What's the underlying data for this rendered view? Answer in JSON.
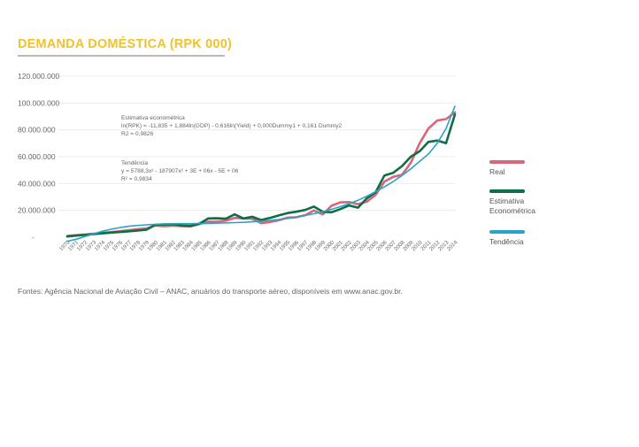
{
  "title": "DEMANDA DOMÉSTICA (RPK 000)",
  "source": "Fontes: Agência Nacional de Aviação Civil – ANAC, anuários do transporte aéreo, disponíveis em www.anac.gov.br.",
  "colors": {
    "real": "#d9667a",
    "estimativa": "#0f6e45",
    "tendencia": "#2aa3c9",
    "title": "#f2c12e"
  },
  "legend": {
    "real": "Real",
    "estimativa_line1": "Estimativa",
    "estimativa_line2": "Econométrica",
    "tendencia": "Tendência"
  },
  "annotations": {
    "estimativa_title": "Estimativa econométrica",
    "estimativa_eq": "ln(RPK) = -11,835 + 1,884ln(GDP) - 0,616ln(Yield) + 0,000Dummy1 + 0,161 Dummy2",
    "estimativa_r2": "R2 = 0,9826",
    "tendencia_title": "Tendência",
    "tendencia_eq": "y = 5788,3x² - 187907x² + 3E + 06x - 5E + 06",
    "tendencia_r2": "R² = 0,9834"
  },
  "chart_data": {
    "type": "line",
    "title": "DEMANDA DOMÉSTICA (RPK 000)",
    "xlabel": "",
    "ylabel": "",
    "ylim": [
      0,
      120000000
    ],
    "yticks": [
      "-",
      "20.000.000",
      "40.000.000",
      "60.000.000",
      "80.000.000",
      "100.000.000",
      "120.000.000"
    ],
    "ytick_values": [
      0,
      20000000,
      40000000,
      60000000,
      80000000,
      100000000,
      120000000
    ],
    "grid": true,
    "legend_position": "right",
    "x": [
      "1970",
      "1971",
      "1972",
      "1973",
      "1974",
      "1975",
      "1976",
      "1977",
      "1978",
      "1979",
      "1980",
      "1981",
      "1982",
      "1983",
      "1984",
      "1985",
      "1986",
      "1987",
      "1988",
      "1989",
      "1990",
      "1991",
      "1992",
      "1993",
      "1994",
      "1995",
      "1996",
      "1997",
      "1998",
      "1999",
      "2000",
      "2001",
      "2002",
      "2003",
      "2004",
      "2005",
      "2006",
      "2007",
      "2008",
      "2009",
      "2010",
      "2011",
      "2012",
      "2013",
      "2014"
    ],
    "series": [
      {
        "name": "Real",
        "values": [
          1000000,
          1500000,
          2000000,
          2600000,
          3200000,
          3800000,
          4500000,
          5200000,
          6000000,
          6500000,
          8700000,
          8200000,
          8600000,
          8300000,
          8000000,
          9800000,
          11600000,
          11700000,
          12300000,
          14400000,
          14000000,
          13700000,
          10500000,
          11300000,
          12600000,
          14600000,
          14900000,
          16400000,
          19900000,
          17000000,
          23500000,
          26000000,
          26200000,
          24500000,
          26500000,
          31500000,
          41500000,
          45000000,
          46500000,
          55500000,
          70000000,
          81000000,
          87000000,
          88000000,
          93000000
        ]
      },
      {
        "name": "Estimativa Econométrica",
        "values": [
          500000,
          1200000,
          1800000,
          2300000,
          2900000,
          3400000,
          3900000,
          4400000,
          5000000,
          5600000,
          9300000,
          9500000,
          9600000,
          8700000,
          8500000,
          10100000,
          14000000,
          14100000,
          13800000,
          17000000,
          14000000,
          15200000,
          12800000,
          14400000,
          16200000,
          18000000,
          19000000,
          20300000,
          22800000,
          19000000,
          18600000,
          21000000,
          23700000,
          22000000,
          29000000,
          33500000,
          46000000,
          48000000,
          53000000,
          60000000,
          64000000,
          71000000,
          72000000,
          70000000,
          91500000
        ]
      },
      {
        "name": "Tendência",
        "values": [
          -3000000,
          -1500000,
          500000,
          2500000,
          4500000,
          6000000,
          7200000,
          8200000,
          8800000,
          9200000,
          9600000,
          9900000,
          10000000,
          10100000,
          10100000,
          10200000,
          10300000,
          10500000,
          10700000,
          10900000,
          11100000,
          11500000,
          11900000,
          12500000,
          13200000,
          14000000,
          15000000,
          16200000,
          17500000,
          19000000,
          20800000,
          22800000,
          25000000,
          27500000,
          30500000,
          34000000,
          37500000,
          41500000,
          46000000,
          51000000,
          56500000,
          62000000,
          70000000,
          81000000,
          97500000
        ]
      }
    ]
  }
}
